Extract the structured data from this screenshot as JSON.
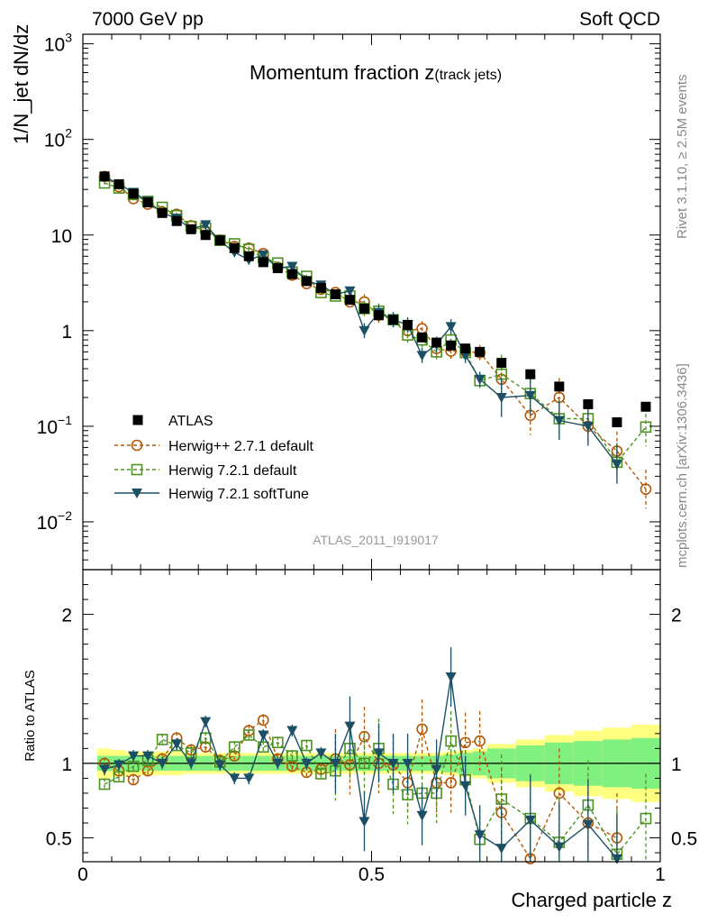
{
  "header": {
    "left": "7000 GeV pp",
    "right": "Soft QCD"
  },
  "side": {
    "rivet": "Rivet 3.1.10, ≥ 2.5M events",
    "mcplots": "mcplots.cern.ch [arXiv:1306.3436]"
  },
  "chart_data": {
    "type": "scatter",
    "title": "Momentum fraction z",
    "title_sub": "(track jets)",
    "analysis_id": "ATLAS_2011_I919017",
    "xlabel": "Charged particle z",
    "ylabel_main": "1/N_jet dN/dz",
    "ylabel_ratio": "Ratio to ATLAS",
    "xlim": [
      0,
      1
    ],
    "ylim_main_log10": [
      -2.5,
      3.1
    ],
    "ylim_ratio": [
      0.34,
      2.3
    ],
    "x_ticks": [
      "0",
      "0.5",
      "1"
    ],
    "y_ticks_main": [
      {
        "v": 1000,
        "base": "10",
        "exp": "3"
      },
      {
        "v": 100,
        "base": "10",
        "exp": "2"
      },
      {
        "v": 10,
        "base": "10",
        "exp": ""
      },
      {
        "v": 1,
        "base": "1",
        "exp": ""
      },
      {
        "v": 0.1,
        "base": "10",
        "exp": "−1"
      },
      {
        "v": 0.01,
        "base": "10",
        "exp": "−2"
      }
    ],
    "y_ticks_ratio": [
      "0.5",
      "1",
      "2"
    ],
    "legend": [
      {
        "name": "ATLAS",
        "marker": "filled-square"
      },
      {
        "name": "Herwig++ 2.7.1 default",
        "marker": "open-circle"
      },
      {
        "name": "Herwig 7.2.1 default",
        "marker": "open-square"
      },
      {
        "name": "Herwig 7.2.1 softTune",
        "marker": "filled-triangle-down"
      }
    ],
    "colors": {
      "atlas": "#000000",
      "hpp": "#b35806",
      "h7def": "#4d9221",
      "h7soft": "#1b4f63",
      "band_inner": "#80f080",
      "band_outer": "#ffff80"
    },
    "x": [
      0.0375,
      0.0625,
      0.0875,
      0.1125,
      0.1375,
      0.1625,
      0.1875,
      0.2125,
      0.2375,
      0.2625,
      0.2875,
      0.3125,
      0.3375,
      0.3625,
      0.3875,
      0.4125,
      0.4375,
      0.4625,
      0.4875,
      0.5125,
      0.5375,
      0.5625,
      0.5875,
      0.6125,
      0.6375,
      0.6625,
      0.6875,
      0.725,
      0.775,
      0.825,
      0.875,
      0.925,
      0.975
    ],
    "series": [
      {
        "name": "ATLAS",
        "values": [
          41,
          34,
          27,
          22,
          17,
          14,
          11.5,
          10,
          8.8,
          7.3,
          6,
          5.2,
          4.5,
          3.9,
          3.3,
          2.8,
          2.4,
          2.1,
          1.7,
          1.45,
          1.3,
          1.15,
          0.85,
          0.75,
          0.7,
          0.65,
          0.6,
          0.46,
          0.35,
          0.26,
          0.17,
          0.11,
          0.16
        ]
      },
      {
        "name": "Herwig++ 2.7.1 default",
        "values": [
          41,
          32,
          24,
          21,
          17.5,
          16.5,
          12.5,
          11,
          8.9,
          7.6,
          7.3,
          6.4,
          4.6,
          3.8,
          3.1,
          2.7,
          2.5,
          2.0,
          2.0,
          1.45,
          1.3,
          1.0,
          1.05,
          0.65,
          0.61,
          0.6,
          0.59,
          0.31,
          0.13,
          0.2,
          0.1,
          0.055,
          0.022
        ]
      },
      {
        "name": "Herwig 7.2.1 default",
        "values": [
          35,
          31,
          26.5,
          22.5,
          19.5,
          16,
          12.3,
          11.8,
          8.8,
          8.1,
          7.1,
          5.8,
          5.1,
          4.1,
          3.7,
          2.5,
          2.3,
          2.3,
          1.7,
          1.6,
          1.3,
          0.9,
          0.8,
          0.6,
          0.8,
          0.59,
          0.3,
          0.35,
          0.22,
          0.12,
          0.12,
          0.042,
          0.098
        ]
      },
      {
        "name": "Herwig 7.2.1 softTune",
        "values": [
          41,
          34,
          28,
          22.5,
          17,
          15,
          11.5,
          12.8,
          8.7,
          6.6,
          5.5,
          6.2,
          4.5,
          4.7,
          3.3,
          3.0,
          2.4,
          2.6,
          1.0,
          1.55,
          1.3,
          1.15,
          0.55,
          0.72,
          1.1,
          0.55,
          0.31,
          0.2,
          0.21,
          0.115,
          0.1,
          0.04,
          null
        ]
      }
    ],
    "ratio_series": [
      {
        "name": "Herwig++ 2.7.1 default",
        "values": [
          1.0,
          0.95,
          0.89,
          0.95,
          1.03,
          1.17,
          1.09,
          1.11,
          1.02,
          1.05,
          1.22,
          1.29,
          1.03,
          0.98,
          0.94,
          0.96,
          1.03,
          0.99,
          1.18,
          1.0,
          0.99,
          0.87,
          1.23,
          0.87,
          0.87,
          1.14,
          1.15,
          0.67,
          0.36,
          0.8,
          0.6,
          0.5,
          null
        ]
      },
      {
        "name": "Herwig 7.2.1 default",
        "values": [
          0.86,
          0.91,
          0.98,
          1.02,
          1.16,
          1.12,
          1.07,
          1.17,
          1.01,
          1.11,
          1.19,
          1.11,
          1.14,
          1.05,
          1.12,
          0.93,
          0.95,
          1.1,
          1.0,
          1.1,
          0.86,
          0.79,
          0.8,
          0.8,
          1.15,
          0.89,
          0.49,
          0.76,
          0.63,
          0.47,
          0.72,
          0.39,
          0.63
        ]
      },
      {
        "name": "Herwig 7.2.1 softTune",
        "values": [
          0.96,
          0.99,
          1.05,
          1.05,
          1.0,
          1.13,
          1.0,
          1.28,
          0.99,
          0.9,
          0.9,
          1.19,
          1.0,
          1.22,
          1.0,
          1.07,
          1.0,
          1.25,
          0.61,
          1.07,
          1.0,
          1.0,
          0.65,
          0.96,
          1.58,
          0.85,
          0.52,
          0.43,
          0.62,
          0.44,
          0.59,
          0.36,
          null
        ]
      }
    ],
    "band_bins": [
      0.025,
      0.05,
      0.075,
      0.1,
      0.125,
      0.15,
      0.175,
      0.2,
      0.225,
      0.25,
      0.275,
      0.3,
      0.325,
      0.35,
      0.375,
      0.4,
      0.425,
      0.45,
      0.475,
      0.5,
      0.525,
      0.55,
      0.575,
      0.6,
      0.625,
      0.65,
      0.675,
      0.7,
      0.75,
      0.8,
      0.85,
      0.9,
      0.95,
      1.0
    ],
    "band_inner": [
      0.05,
      0.05,
      0.05,
      0.05,
      0.05,
      0.05,
      0.05,
      0.05,
      0.05,
      0.05,
      0.05,
      0.05,
      0.05,
      0.05,
      0.05,
      0.05,
      0.05,
      0.05,
      0.05,
      0.05,
      0.05,
      0.05,
      0.05,
      0.05,
      0.06,
      0.07,
      0.08,
      0.1,
      0.12,
      0.14,
      0.15,
      0.16,
      0.17
    ],
    "band_outer": [
      0.1,
      0.09,
      0.08,
      0.08,
      0.08,
      0.08,
      0.07,
      0.07,
      0.07,
      0.07,
      0.07,
      0.07,
      0.07,
      0.07,
      0.07,
      0.07,
      0.07,
      0.07,
      0.07,
      0.07,
      0.07,
      0.07,
      0.07,
      0.07,
      0.08,
      0.09,
      0.1,
      0.13,
      0.16,
      0.19,
      0.22,
      0.24,
      0.26
    ]
  }
}
